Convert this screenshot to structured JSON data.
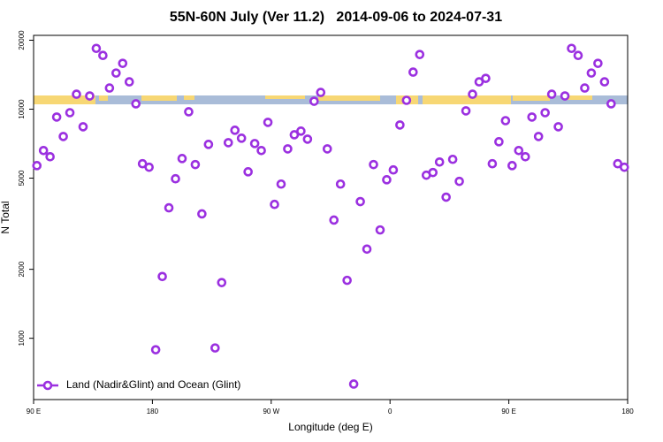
{
  "chart_data": {
    "type": "scatter",
    "title": "55N-60N July (Ver 11.2)   2014-09-06 to 2024-07-31",
    "x_label": "Longitude (deg E)",
    "y_label": "N Total",
    "log_y": true,
    "legend": "bottom-left",
    "xlim": [
      90,
      540
    ],
    "xticks": [
      {
        "value": 90,
        "label": "90 E"
      },
      180,
      {
        "value": 270,
        "label": "90 W"
      },
      {
        "value": 360,
        "label": "0"
      },
      {
        "value": 450,
        "label": "90 E"
      },
      {
        "value": 540,
        "label": "180"
      }
    ],
    "ylim": [
      540,
      21000
    ],
    "yticks": [
      1000,
      2000,
      5000,
      10000,
      20000
    ],
    "series": [
      {
        "name": "Land (Nadir&Glint) and Ocean (Glint)",
        "color": "#9b30e0",
        "x": [
          92.5,
          97.5,
          102.5,
          107.5,
          112.5,
          117.5,
          122.5,
          127.5,
          132.5,
          137.5,
          142.5,
          147.5,
          152.5,
          157.5,
          162.5,
          167.5,
          172.5,
          177.5,
          182.5,
          187.5,
          192.5,
          197.5,
          202.5,
          207.5,
          212.5,
          217.5,
          222.5,
          227.5,
          232.5,
          237.5,
          242.5,
          247.5,
          252.5,
          257.5,
          262.5,
          267.5,
          272.5,
          277.5,
          282.5,
          287.5,
          292.5,
          297.5,
          302.5,
          307.5,
          312.5,
          317.5,
          322.5,
          327.5,
          332.5,
          337.5,
          342.5,
          347.5,
          352.5,
          357.5,
          362.5,
          367.5,
          372.5,
          377.5,
          382.5,
          387.5,
          392.5,
          397.5,
          402.5,
          407.5,
          412.5,
          417.5,
          422.5,
          427.5,
          432.5,
          437.5,
          442.5,
          447.5,
          452.5,
          457.5,
          462.5,
          467.5,
          472.5,
          477.5,
          482.5,
          487.5,
          492.5,
          497.5,
          502.5,
          507.5,
          512.5,
          517.5,
          522.5,
          527.5,
          532.5,
          537.5
        ],
        "values": [
          5670,
          6600,
          6200,
          9240,
          7600,
          9650,
          11620,
          8380,
          11420,
          18420,
          17160,
          12370,
          14380,
          15850,
          13160,
          10550,
          5780,
          5580,
          891,
          1860,
          3710,
          4970,
          6090,
          9740,
          5730,
          3490,
          7020,
          907,
          1750,
          7140,
          8090,
          7470,
          5330,
          7080,
          6600,
          8760,
          3840,
          4710,
          6710,
          7730,
          8020,
          7400,
          10830,
          11830,
          6710,
          3280,
          4710,
          1790,
          631,
          3950,
          2450,
          5730,
          2970,
          4920,
          5430,
          8530,
          10930,
          14510,
          17320,
          5150,
          5290,
          5880,
          4130,
          6040,
          4840,
          9830,
          11620,
          13160,
          13630,
          5780,
          7210,
          8910,
          5670,
          6600,
          6200,
          9240,
          7600,
          9650,
          11620,
          8380,
          11420,
          18420,
          17160,
          12370,
          14380,
          15850,
          13160,
          10550,
          5780,
          5580
        ]
      }
    ]
  }
}
